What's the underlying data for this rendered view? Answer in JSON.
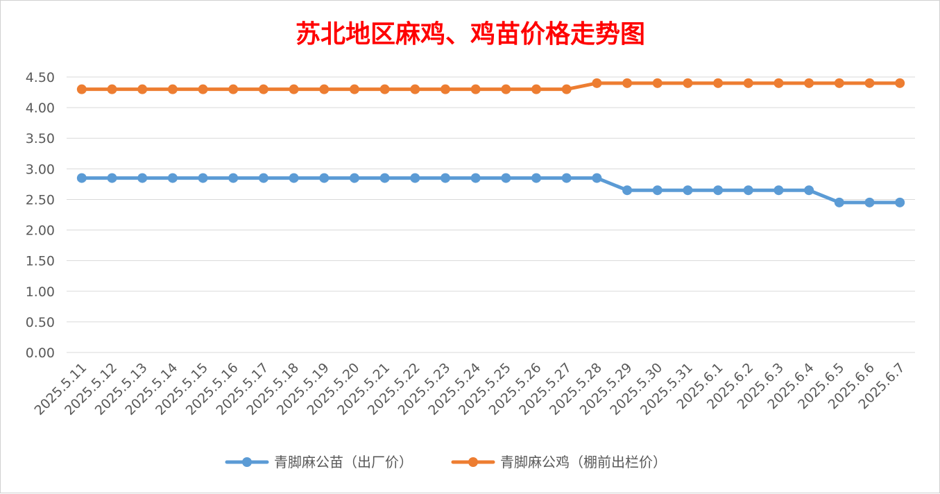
{
  "chart_data": {
    "type": "line",
    "title": "苏北地区麻鸡、鸡苗价格走势图",
    "xlabel": "",
    "ylabel": "",
    "ylim": [
      0,
      4.5
    ],
    "yticks": [
      "0.00",
      "0.50",
      "1.00",
      "1.50",
      "2.00",
      "2.50",
      "3.00",
      "3.50",
      "4.00",
      "4.50"
    ],
    "grid": true,
    "legend_position": "bottom",
    "categories": [
      "2025.5.11",
      "2025.5.12",
      "2025.5.13",
      "2025.5.14",
      "2025.5.15",
      "2025.5.16",
      "2025.5.17",
      "2025.5.18",
      "2025.5.19",
      "2025.5.20",
      "2025.5.21",
      "2025.5.22",
      "2025.5.23",
      "2025.5.24",
      "2025.5.25",
      "2025.5.26",
      "2025.5.27",
      "2025.5.28",
      "2025.5.29",
      "2025.5.30",
      "2025.5.31",
      "2025.6.1",
      "2025.6.2",
      "2025.6.3",
      "2025.6.4",
      "2025.6.5",
      "2025.6.6",
      "2025.6.7"
    ],
    "series": [
      {
        "name": "青脚麻公苗（出厂价）",
        "color": "#5b9bd5",
        "values": [
          2.85,
          2.85,
          2.85,
          2.85,
          2.85,
          2.85,
          2.85,
          2.85,
          2.85,
          2.85,
          2.85,
          2.85,
          2.85,
          2.85,
          2.85,
          2.85,
          2.85,
          2.85,
          2.65,
          2.65,
          2.65,
          2.65,
          2.65,
          2.65,
          2.65,
          2.45,
          2.45,
          2.45
        ]
      },
      {
        "name": "青脚麻公鸡（棚前出栏价）",
        "color": "#ed7d31",
        "values": [
          4.3,
          4.3,
          4.3,
          4.3,
          4.3,
          4.3,
          4.3,
          4.3,
          4.3,
          4.3,
          4.3,
          4.3,
          4.3,
          4.3,
          4.3,
          4.3,
          4.3,
          4.4,
          4.4,
          4.4,
          4.4,
          4.4,
          4.4,
          4.4,
          4.4,
          4.4,
          4.4,
          4.4
        ]
      }
    ]
  }
}
